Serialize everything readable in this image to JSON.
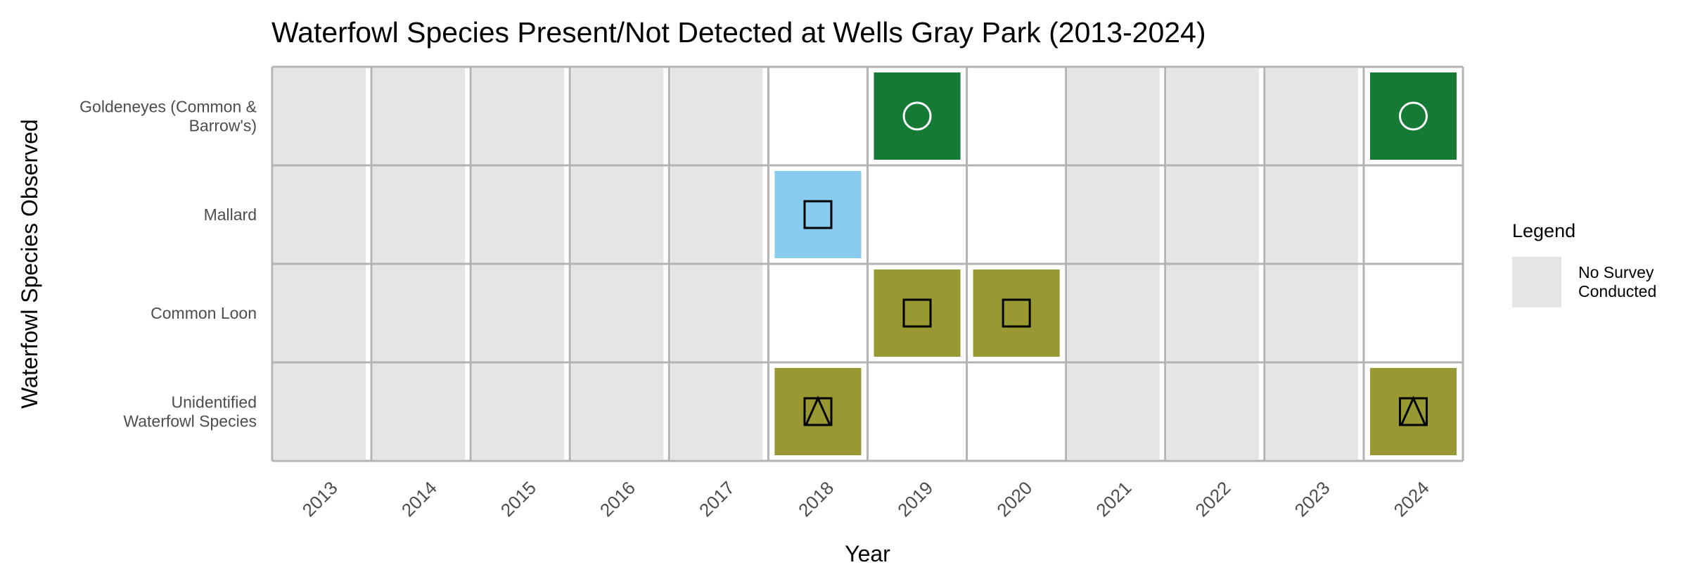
{
  "chart_data": {
    "type": "heatmap",
    "title": "Waterfowl Species Present/Not Detected at Wells Gray Park (2013-2024)",
    "xlabel": "Year",
    "ylabel": "Waterfowl Species Observed",
    "x_categories": [
      "2013",
      "2014",
      "2015",
      "2016",
      "2017",
      "2018",
      "2019",
      "2020",
      "2021",
      "2022",
      "2023",
      "2024"
    ],
    "y_categories": [
      [
        "Goldeneyes (Common &",
        "Barrow's)"
      ],
      [
        "Mallard"
      ],
      [
        "Common Loon"
      ],
      [
        "Unidentified",
        "Waterfowl Species"
      ]
    ],
    "no_survey_years": [
      "2013",
      "2014",
      "2015",
      "2016",
      "2017",
      "2021",
      "2022",
      "2023"
    ],
    "cells": [
      {
        "species": 0,
        "year": "2019",
        "fill": "#147a34",
        "marker": "circle",
        "marker_color": "#ffffff"
      },
      {
        "species": 0,
        "year": "2024",
        "fill": "#147a34",
        "marker": "circle",
        "marker_color": "#ffffff"
      },
      {
        "species": 1,
        "year": "2018",
        "fill": "#89cbee",
        "marker": "square",
        "marker_color": "#000000"
      },
      {
        "species": 2,
        "year": "2019",
        "fill": "#999933",
        "marker": "square",
        "marker_color": "#000000"
      },
      {
        "species": 2,
        "year": "2020",
        "fill": "#999933",
        "marker": "square",
        "marker_color": "#000000"
      },
      {
        "species": 3,
        "year": "2018",
        "fill": "#999933",
        "marker": "triangle-square",
        "marker_color": "#000000"
      },
      {
        "species": 3,
        "year": "2024",
        "fill": "#999933",
        "marker": "triangle-square",
        "marker_color": "#000000"
      }
    ],
    "colors": {
      "no_survey": "#e5e5e5",
      "grid": "#b3b3b3",
      "background": "#ffffff"
    },
    "legend": {
      "title": "Legend",
      "placement": "right",
      "items": [
        {
          "label": [
            "No Survey",
            "Conducted"
          ],
          "color": "#e5e5e5"
        }
      ]
    },
    "grid": true
  }
}
